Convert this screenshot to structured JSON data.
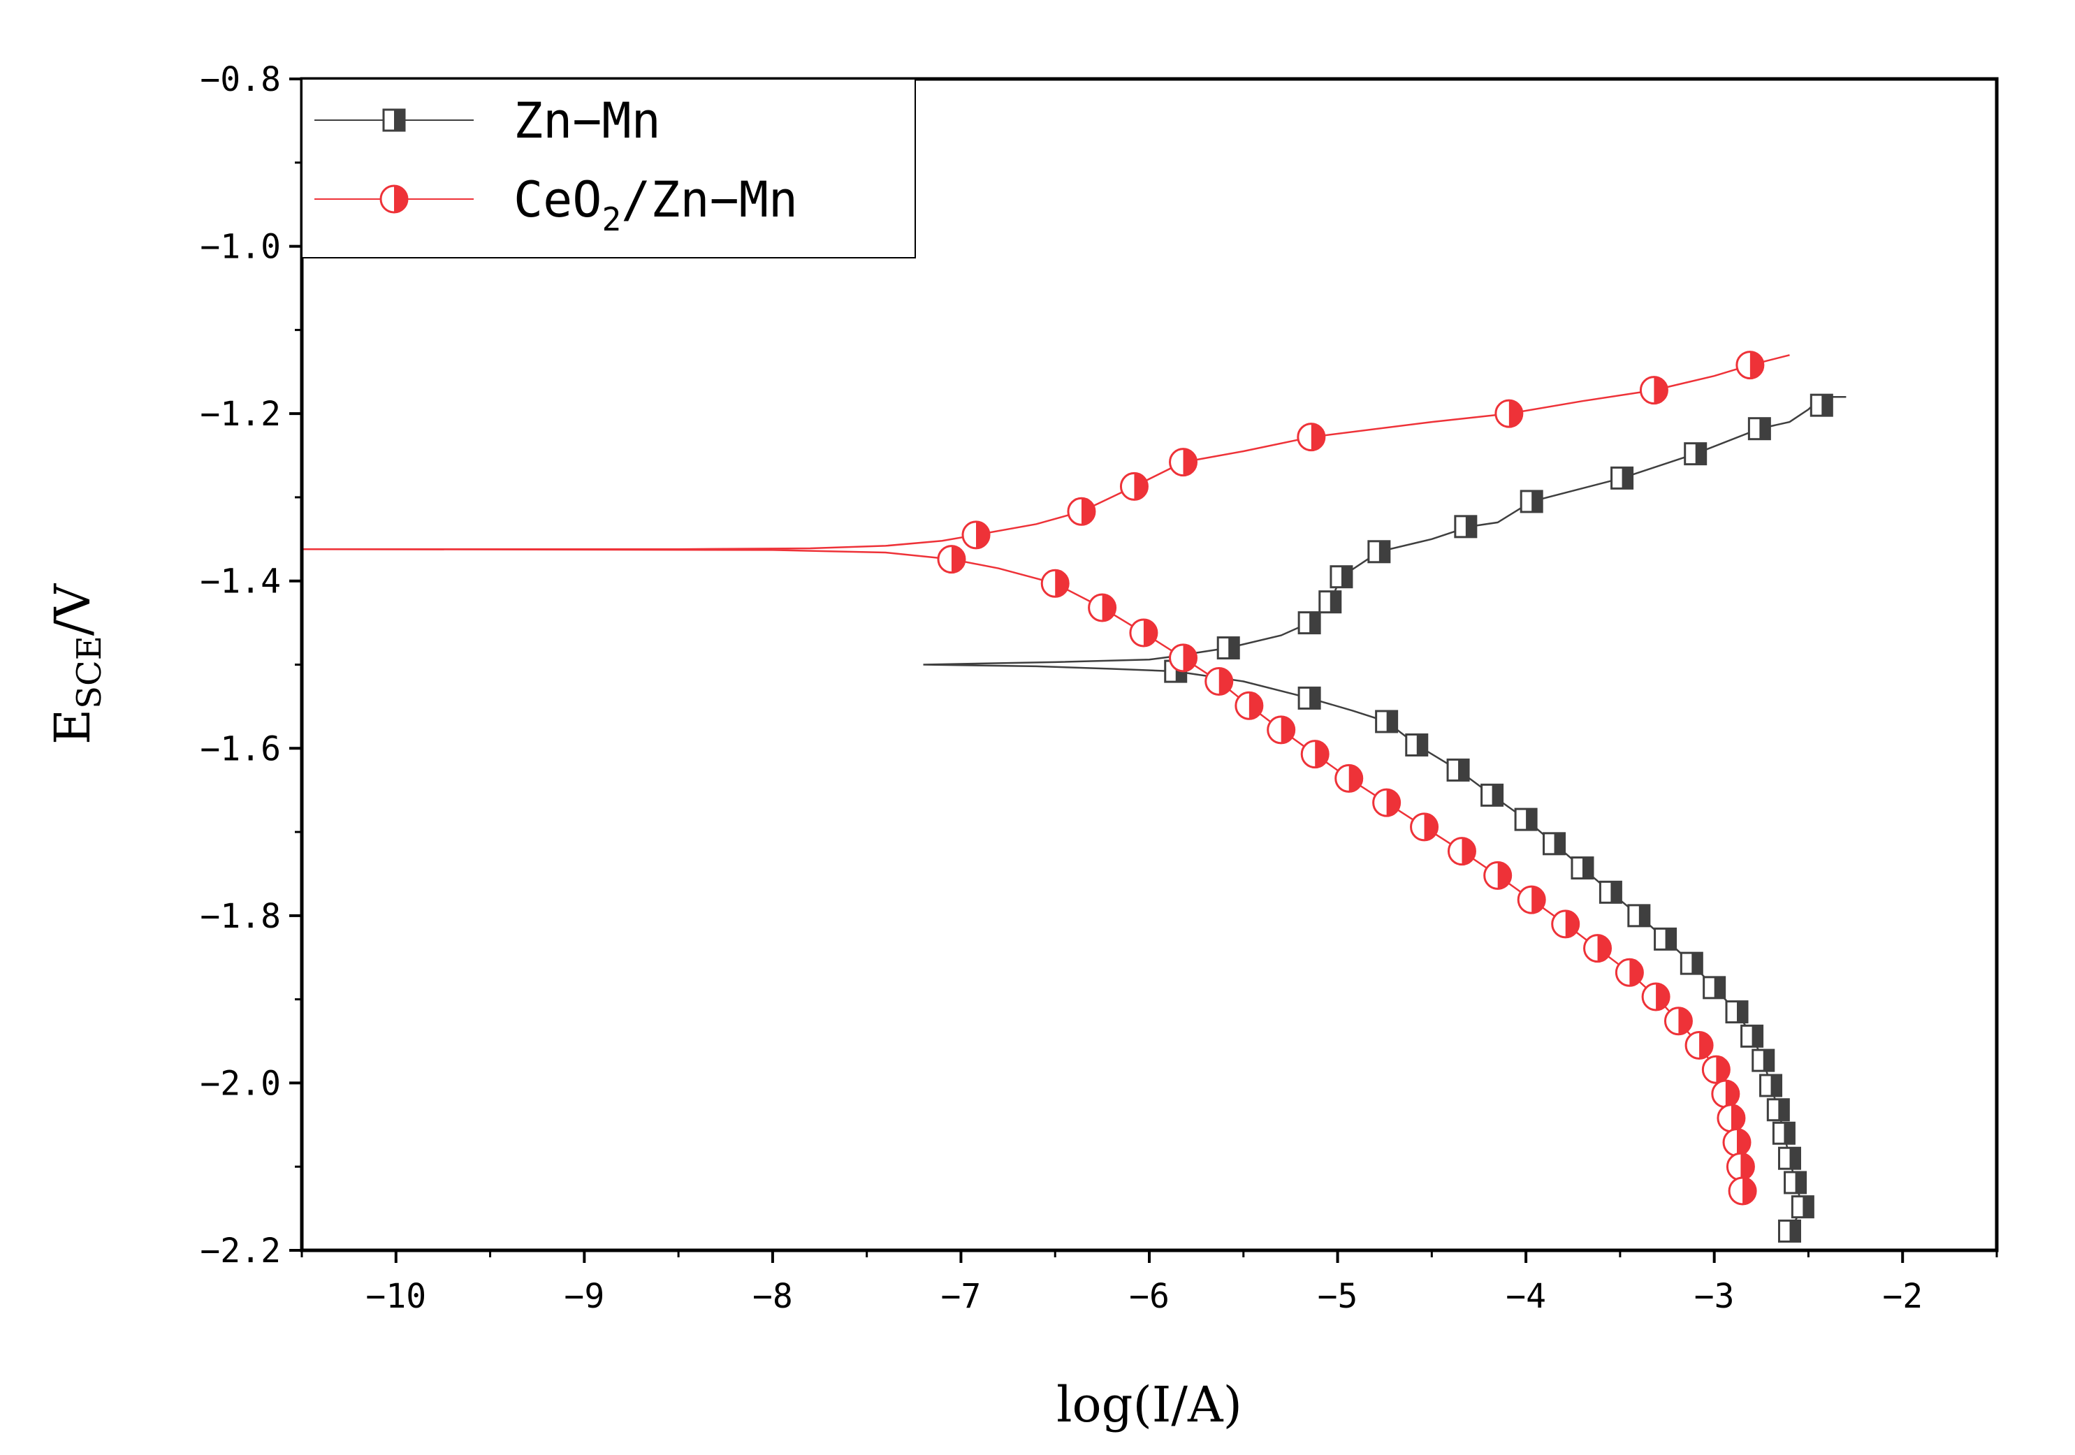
{
  "chart_data": {
    "type": "line",
    "title": "",
    "xlabel": "log(I/A)",
    "ylabel": {
      "main": "E",
      "sub": "SCE",
      "suffix": "/V"
    },
    "xlim": [
      -10.5,
      -1.5
    ],
    "ylim": [
      -2.2,
      -0.8
    ],
    "x_ticks": [
      -10,
      -9,
      -8,
      -7,
      -6,
      -5,
      -4,
      -3,
      -2
    ],
    "x_tick_labels": [
      "−10",
      "−9",
      "−8",
      "−7",
      "−6",
      "−5",
      "−4",
      "−3",
      "−2"
    ],
    "y_ticks": [
      -0.8,
      -1.0,
      -1.2,
      -1.4,
      -1.6,
      -1.8,
      -2.0,
      -2.2
    ],
    "y_tick_labels": [
      "−0.8",
      "−1.0",
      "−1.2",
      "−1.4",
      "−1.6",
      "−1.8",
      "−2.0",
      "−2.2"
    ],
    "legend_position": "top-left",
    "series": [
      {
        "name": "Zn-Mn",
        "legend_label": "Zn−Mn",
        "color": "#3f3f3f",
        "marker": "half-filled-square",
        "line": [
          [
            -7.2,
            -1.5
          ],
          [
            -6.5,
            -1.497
          ],
          [
            -6.0,
            -1.494
          ],
          [
            -5.9,
            -1.491
          ],
          [
            -5.58,
            -1.48
          ],
          [
            -5.3,
            -1.465
          ],
          [
            -5.15,
            -1.45
          ],
          [
            -5.04,
            -1.425
          ],
          [
            -4.98,
            -1.395
          ],
          [
            -4.78,
            -1.365
          ],
          [
            -4.5,
            -1.35
          ],
          [
            -4.3,
            -1.335
          ],
          [
            -4.15,
            -1.33
          ],
          [
            -3.97,
            -1.305
          ],
          [
            -3.49,
            -1.277
          ],
          [
            -3.1,
            -1.248
          ],
          [
            -2.76,
            -1.218
          ],
          [
            -2.6,
            -1.21
          ],
          [
            -2.5,
            -1.195
          ],
          [
            -2.43,
            -1.18
          ],
          [
            -2.3,
            -1.18
          ],
          [
            -7.2,
            -1.5
          ],
          [
            -6.6,
            -1.502
          ],
          [
            -6.2,
            -1.505
          ],
          [
            -5.86,
            -1.508
          ],
          [
            -5.5,
            -1.52
          ],
          [
            -5.15,
            -1.54
          ],
          [
            -4.92,
            -1.555
          ],
          [
            -4.74,
            -1.568
          ],
          [
            -4.58,
            -1.596
          ],
          [
            -4.36,
            -1.626
          ],
          [
            -4.18,
            -1.656
          ],
          [
            -4.0,
            -1.685
          ],
          [
            -3.85,
            -1.714
          ],
          [
            -3.7,
            -1.743
          ],
          [
            -3.55,
            -1.772
          ],
          [
            -3.4,
            -1.8
          ],
          [
            -3.26,
            -1.828
          ],
          [
            -3.12,
            -1.857
          ],
          [
            -3.0,
            -1.886
          ],
          [
            -2.88,
            -1.915
          ],
          [
            -2.8,
            -1.944
          ],
          [
            -2.74,
            -1.973
          ],
          [
            -2.7,
            -2.003
          ],
          [
            -2.66,
            -2.032
          ],
          [
            -2.63,
            -2.06
          ],
          [
            -2.6,
            -2.09
          ],
          [
            -2.57,
            -2.119
          ],
          [
            -2.53,
            -2.148
          ],
          [
            -2.6,
            -2.177
          ]
        ],
        "markers": [
          [
            -5.86,
            -1.508
          ],
          [
            -5.58,
            -1.48
          ],
          [
            -5.15,
            -1.54
          ],
          [
            -5.15,
            -1.45
          ],
          [
            -5.04,
            -1.425
          ],
          [
            -4.98,
            -1.395
          ],
          [
            -4.74,
            -1.568
          ],
          [
            -4.78,
            -1.365
          ],
          [
            -4.58,
            -1.596
          ],
          [
            -4.36,
            -1.626
          ],
          [
            -4.32,
            -1.335
          ],
          [
            -4.18,
            -1.656
          ],
          [
            -4.0,
            -1.685
          ],
          [
            -3.97,
            -1.305
          ],
          [
            -3.85,
            -1.714
          ],
          [
            -3.7,
            -1.743
          ],
          [
            -3.55,
            -1.772
          ],
          [
            -3.49,
            -1.277
          ],
          [
            -3.4,
            -1.8
          ],
          [
            -3.26,
            -1.828
          ],
          [
            -3.12,
            -1.857
          ],
          [
            -3.1,
            -1.248
          ],
          [
            -3.0,
            -1.886
          ],
          [
            -2.88,
            -1.915
          ],
          [
            -2.8,
            -1.944
          ],
          [
            -2.76,
            -1.218
          ],
          [
            -2.74,
            -1.973
          ],
          [
            -2.7,
            -2.003
          ],
          [
            -2.66,
            -2.032
          ],
          [
            -2.63,
            -2.06
          ],
          [
            -2.6,
            -2.09
          ],
          [
            -2.57,
            -2.119
          ],
          [
            -2.53,
            -2.148
          ],
          [
            -2.6,
            -2.177
          ],
          [
            -2.43,
            -1.19
          ]
        ]
      },
      {
        "name": "CeO2/Zn-Mn",
        "legend_label": {
          "main": "CeO",
          "sub": "2",
          "suffix": "/Zn−Mn"
        },
        "color": "#ee3238",
        "marker": "half-filled-circle",
        "line": [
          [
            -10.5,
            -1.362
          ],
          [
            -9.5,
            -1.362
          ],
          [
            -8.5,
            -1.362
          ],
          [
            -7.8,
            -1.361
          ],
          [
            -7.4,
            -1.358
          ],
          [
            -7.1,
            -1.352
          ],
          [
            -6.92,
            -1.345
          ],
          [
            -6.6,
            -1.332
          ],
          [
            -6.36,
            -1.317
          ],
          [
            -6.08,
            -1.287
          ],
          [
            -5.82,
            -1.258
          ],
          [
            -5.5,
            -1.245
          ],
          [
            -5.14,
            -1.228
          ],
          [
            -4.5,
            -1.21
          ],
          [
            -4.09,
            -1.2
          ],
          [
            -3.7,
            -1.185
          ],
          [
            -3.32,
            -1.172
          ],
          [
            -3.0,
            -1.155
          ],
          [
            -2.81,
            -1.142
          ],
          [
            -2.6,
            -1.13
          ],
          [
            -10.5,
            -1.362
          ],
          [
            -8.0,
            -1.363
          ],
          [
            -7.4,
            -1.366
          ],
          [
            -7.05,
            -1.374
          ],
          [
            -6.8,
            -1.385
          ],
          [
            -6.5,
            -1.403
          ],
          [
            -6.25,
            -1.432
          ],
          [
            -6.03,
            -1.462
          ],
          [
            -5.82,
            -1.492
          ],
          [
            -5.63,
            -1.52
          ],
          [
            -5.47,
            -1.549
          ],
          [
            -5.3,
            -1.578
          ],
          [
            -5.12,
            -1.607
          ],
          [
            -4.94,
            -1.636
          ],
          [
            -4.74,
            -1.665
          ],
          [
            -4.54,
            -1.694
          ],
          [
            -4.34,
            -1.723
          ],
          [
            -4.15,
            -1.752
          ],
          [
            -3.97,
            -1.781
          ],
          [
            -3.79,
            -1.81
          ],
          [
            -3.62,
            -1.839
          ],
          [
            -3.45,
            -1.868
          ],
          [
            -3.31,
            -1.897
          ],
          [
            -3.19,
            -1.926
          ],
          [
            -3.08,
            -1.955
          ],
          [
            -2.99,
            -1.984
          ],
          [
            -2.94,
            -2.013
          ],
          [
            -2.91,
            -2.042
          ],
          [
            -2.88,
            -2.071
          ],
          [
            -2.86,
            -2.1
          ],
          [
            -2.85,
            -2.129
          ]
        ],
        "markers": [
          [
            -7.05,
            -1.374
          ],
          [
            -6.92,
            -1.345
          ],
          [
            -6.5,
            -1.403
          ],
          [
            -6.36,
            -1.317
          ],
          [
            -6.25,
            -1.432
          ],
          [
            -6.08,
            -1.287
          ],
          [
            -6.03,
            -1.462
          ],
          [
            -5.82,
            -1.258
          ],
          [
            -5.82,
            -1.492
          ],
          [
            -5.63,
            -1.52
          ],
          [
            -5.47,
            -1.549
          ],
          [
            -5.3,
            -1.578
          ],
          [
            -5.14,
            -1.228
          ],
          [
            -5.12,
            -1.607
          ],
          [
            -4.94,
            -1.636
          ],
          [
            -4.74,
            -1.665
          ],
          [
            -4.54,
            -1.694
          ],
          [
            -4.34,
            -1.723
          ],
          [
            -4.15,
            -1.752
          ],
          [
            -4.09,
            -1.2
          ],
          [
            -3.97,
            -1.781
          ],
          [
            -3.79,
            -1.81
          ],
          [
            -3.62,
            -1.839
          ],
          [
            -3.45,
            -1.868
          ],
          [
            -3.32,
            -1.172
          ],
          [
            -3.31,
            -1.897
          ],
          [
            -3.19,
            -1.926
          ],
          [
            -3.08,
            -1.955
          ],
          [
            -2.99,
            -1.984
          ],
          [
            -2.94,
            -2.013
          ],
          [
            -2.91,
            -2.042
          ],
          [
            -2.88,
            -2.071
          ],
          [
            -2.86,
            -2.1
          ],
          [
            -2.85,
            -2.129
          ],
          [
            -2.81,
            -1.142
          ]
        ]
      }
    ]
  }
}
